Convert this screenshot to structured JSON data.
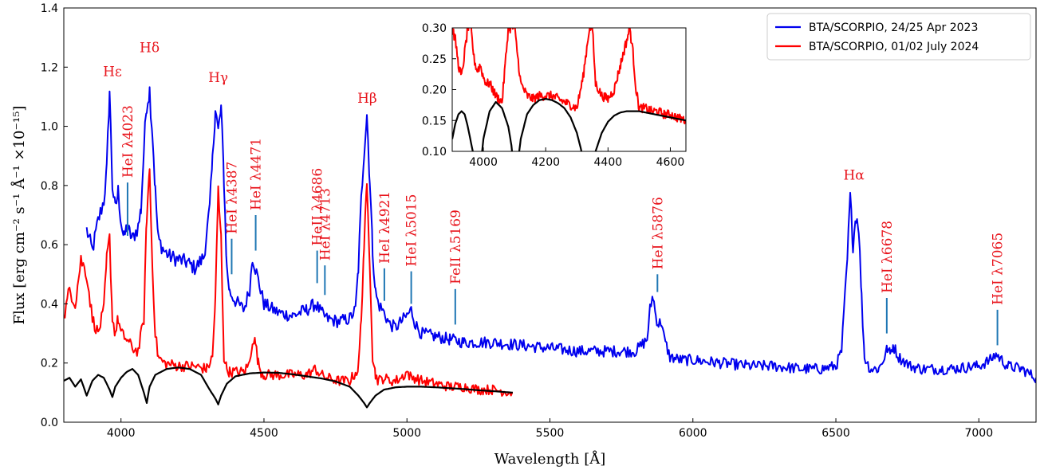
{
  "chart_data": [
    {
      "type": "line",
      "xlabel": "Wavelength [Å]",
      "ylabel": "Flux [erg cm⁻² s⁻¹ Å⁻¹ ×10⁻¹⁵]",
      "xlim": [
        3800,
        7200
      ],
      "ylim": [
        0,
        1.4
      ],
      "xticks": [
        "4000",
        "4500",
        "5000",
        "5500",
        "6000",
        "6500",
        "7000"
      ],
      "yticks": [
        "0.0",
        "0.2",
        "0.4",
        "0.6",
        "0.8",
        "1.0",
        "1.2",
        "1.4"
      ],
      "legend_position": "top-right",
      "series": [
        {
          "name": "BTA/SCORPIO, 24/25 Apr 2023",
          "color": "#0000ee",
          "x": [
            3880,
            3900,
            3920,
            3940,
            3950,
            3960,
            3970,
            3980,
            3990,
            4000,
            4010,
            4020,
            4030,
            4040,
            4060,
            4070,
            4080,
            4090,
            4100,
            4110,
            4120,
            4130,
            4150,
            4170,
            4200,
            4230,
            4260,
            4290,
            4310,
            4320,
            4330,
            4340,
            4350,
            4360,
            4370,
            4380,
            4400,
            4430,
            4450,
            4460,
            4470,
            4480,
            4490,
            4500,
            4550,
            4600,
            4650,
            4680,
            4700,
            4720,
            4760,
            4800,
            4820,
            4830,
            4840,
            4850,
            4860,
            4870,
            4880,
            4890,
            4900,
            4920,
            4940,
            4960,
            4980,
            5000,
            5015,
            5030,
            5050,
            5100,
            5150,
            5200,
            5300,
            5400,
            5500,
            5600,
            5700,
            5800,
            5840,
            5850,
            5860,
            5870,
            5880,
            5890,
            5900,
            5920,
            5960,
            6000,
            6100,
            6200,
            6280,
            6380,
            6450,
            6500,
            6520,
            6540,
            6550,
            6560,
            6570,
            6580,
            6590,
            6600,
            6620,
            6650,
            6670,
            6680,
            6690,
            6700,
            6720,
            6760,
            6800,
            6900,
            7000,
            7040,
            7060,
            7080,
            7100,
            7150,
            7200
          ],
          "y": [
            0.65,
            0.58,
            0.68,
            0.75,
            0.85,
            1.12,
            0.8,
            0.72,
            0.78,
            0.68,
            0.62,
            0.66,
            0.64,
            0.62,
            0.66,
            0.72,
            0.92,
            1.08,
            1.12,
            0.98,
            0.78,
            0.62,
            0.58,
            0.56,
            0.55,
            0.54,
            0.52,
            0.56,
            0.72,
            0.88,
            1.07,
            0.98,
            1.06,
            0.82,
            0.52,
            0.44,
            0.41,
            0.38,
            0.45,
            0.56,
            0.52,
            0.48,
            0.44,
            0.4,
            0.37,
            0.36,
            0.38,
            0.4,
            0.37,
            0.35,
            0.34,
            0.35,
            0.38,
            0.52,
            0.75,
            0.92,
            1.04,
            0.82,
            0.58,
            0.44,
            0.4,
            0.37,
            0.33,
            0.32,
            0.34,
            0.36,
            0.38,
            0.33,
            0.3,
            0.29,
            0.28,
            0.27,
            0.27,
            0.26,
            0.25,
            0.24,
            0.24,
            0.24,
            0.28,
            0.38,
            0.43,
            0.36,
            0.33,
            0.34,
            0.28,
            0.22,
            0.21,
            0.21,
            0.2,
            0.19,
            0.19,
            0.18,
            0.18,
            0.19,
            0.24,
            0.55,
            0.76,
            0.6,
            0.7,
            0.66,
            0.42,
            0.22,
            0.18,
            0.18,
            0.22,
            0.25,
            0.23,
            0.26,
            0.22,
            0.19,
            0.18,
            0.18,
            0.19,
            0.21,
            0.23,
            0.21,
            0.19,
            0.18,
            0.15
          ]
        },
        {
          "name": "BTA/SCORPIO, 01/02 July 2024",
          "color": "#ff0000",
          "x": [
            3800,
            3820,
            3840,
            3860,
            3880,
            3900,
            3920,
            3940,
            3950,
            3960,
            3970,
            3980,
            3990,
            4000,
            4020,
            4040,
            4060,
            4080,
            4090,
            4100,
            4110,
            4120,
            4130,
            4150,
            4200,
            4250,
            4300,
            4320,
            4330,
            4340,
            4350,
            4360,
            4370,
            4380,
            4400,
            4430,
            4450,
            4460,
            4470,
            4480,
            4490,
            4500,
            4550,
            4600,
            4650,
            4680,
            4700,
            4720,
            4760,
            4800,
            4830,
            4840,
            4850,
            4860,
            4870,
            4880,
            4890,
            4900,
            4920,
            4940,
            4960,
            4980,
            5000,
            5015,
            5030,
            5050,
            5100,
            5150,
            5200,
            5250,
            5300,
            5370
          ],
          "y": [
            0.35,
            0.45,
            0.4,
            0.55,
            0.5,
            0.35,
            0.3,
            0.38,
            0.55,
            0.62,
            0.35,
            0.3,
            0.35,
            0.3,
            0.28,
            0.25,
            0.24,
            0.35,
            0.7,
            0.85,
            0.52,
            0.3,
            0.22,
            0.2,
            0.19,
            0.19,
            0.18,
            0.22,
            0.42,
            0.78,
            0.62,
            0.22,
            0.18,
            0.17,
            0.17,
            0.17,
            0.2,
            0.28,
            0.27,
            0.2,
            0.17,
            0.16,
            0.16,
            0.16,
            0.16,
            0.18,
            0.16,
            0.15,
            0.14,
            0.14,
            0.18,
            0.35,
            0.6,
            0.79,
            0.55,
            0.22,
            0.16,
            0.14,
            0.15,
            0.14,
            0.14,
            0.15,
            0.17,
            0.15,
            0.15,
            0.14,
            0.13,
            0.12,
            0.12,
            0.11,
            0.11,
            0.1
          ]
        },
        {
          "color": "#000000",
          "x": [
            3800,
            3820,
            3840,
            3860,
            3880,
            3900,
            3920,
            3940,
            3960,
            3970,
            3980,
            4000,
            4020,
            4040,
            4060,
            4080,
            4090,
            4100,
            4120,
            4160,
            4200,
            4240,
            4280,
            4310,
            4330,
            4340,
            4350,
            4370,
            4400,
            4450,
            4500,
            4550,
            4600,
            4650,
            4700,
            4750,
            4800,
            4830,
            4850,
            4860,
            4870,
            4890,
            4920,
            4960,
            5000,
            5050,
            5100,
            5150,
            5200,
            5250,
            5300,
            5370
          ],
          "y": [
            0.14,
            0.15,
            0.12,
            0.145,
            0.09,
            0.14,
            0.16,
            0.15,
            0.11,
            0.085,
            0.12,
            0.15,
            0.17,
            0.18,
            0.16,
            0.1,
            0.065,
            0.12,
            0.16,
            0.18,
            0.185,
            0.18,
            0.16,
            0.11,
            0.08,
            0.06,
            0.09,
            0.13,
            0.155,
            0.165,
            0.168,
            0.167,
            0.162,
            0.155,
            0.148,
            0.138,
            0.12,
            0.09,
            0.065,
            0.05,
            0.065,
            0.09,
            0.11,
            0.118,
            0.12,
            0.12,
            0.118,
            0.115,
            0.112,
            0.108,
            0.105,
            0.1
          ]
        }
      ],
      "annotations": [
        {
          "label": "Hε",
          "x": 3970,
          "y": 1.17
        },
        {
          "label": "Hδ",
          "x": 4100,
          "y": 1.25
        },
        {
          "label": "Hγ",
          "x": 4340,
          "y": 1.15
        },
        {
          "label": "Hβ",
          "x": 4861,
          "y": 1.08
        },
        {
          "label": "Hα",
          "x": 6563,
          "y": 0.82
        }
      ],
      "line_ids": [
        {
          "label": "HeI λ4023",
          "x": 4023,
          "y0": 0.63,
          "y1": 0.81
        },
        {
          "label": "HeI λ4387",
          "x": 4387,
          "y0": 0.5,
          "y1": 0.62
        },
        {
          "label": "HeI λ4471",
          "x": 4471,
          "y0": 0.58,
          "y1": 0.7
        },
        {
          "label": "HeII λ4686",
          "x": 4686,
          "y0": 0.47,
          "y1": 0.58
        },
        {
          "label": "HeI λ4713",
          "x": 4713,
          "y0": 0.43,
          "y1": 0.53
        },
        {
          "label": "HeI λ4921",
          "x": 4921,
          "y0": 0.41,
          "y1": 0.52
        },
        {
          "label": "HeI λ5015",
          "x": 5015,
          "y0": 0.4,
          "y1": 0.51
        },
        {
          "label": "FeII λ5169",
          "x": 5169,
          "y0": 0.33,
          "y1": 0.45
        },
        {
          "label": "HeI λ5876",
          "x": 5876,
          "y0": 0.44,
          "y1": 0.5
        },
        {
          "label": "HeI λ6678",
          "x": 6678,
          "y0": 0.3,
          "y1": 0.42
        },
        {
          "label": "HeI λ7065",
          "x": 7065,
          "y0": 0.26,
          "y1": 0.38
        }
      ]
    },
    {
      "type": "line",
      "title": "",
      "xlim": [
        3900,
        4650
      ],
      "ylim": [
        0.1,
        0.3
      ],
      "xticks": [
        "4000",
        "4200",
        "4400",
        "4600"
      ],
      "yticks": [
        "0.10",
        "0.15",
        "0.20",
        "0.25",
        "0.30"
      ],
      "series": [
        {
          "color": "#ff0000",
          "x": [
            3900,
            3910,
            3920,
            3930,
            3940,
            3950,
            3960,
            3970,
            3980,
            3990,
            4000,
            4010,
            4020,
            4030,
            4040,
            4060,
            4080,
            4100,
            4120,
            4140,
            4160,
            4180,
            4200,
            4220,
            4240,
            4260,
            4280,
            4300,
            4320,
            4340,
            4350,
            4360,
            4380,
            4400,
            4420,
            4440,
            4460,
            4470,
            4480,
            4490,
            4500,
            4520,
            4540,
            4560,
            4580,
            4600,
            4620,
            4650
          ],
          "y": [
            0.3,
            0.28,
            0.24,
            0.22,
            0.26,
            0.3,
            0.3,
            0.25,
            0.23,
            0.24,
            0.22,
            0.21,
            0.21,
            0.2,
            0.19,
            0.18,
            0.3,
            0.3,
            0.21,
            0.19,
            0.185,
            0.19,
            0.19,
            0.19,
            0.185,
            0.18,
            0.175,
            0.17,
            0.22,
            0.3,
            0.3,
            0.21,
            0.19,
            0.185,
            0.2,
            0.24,
            0.28,
            0.3,
            0.26,
            0.2,
            0.17,
            0.17,
            0.165,
            0.165,
            0.16,
            0.16,
            0.155,
            0.15
          ]
        },
        {
          "color": "#000000",
          "x": [
            3900,
            3910,
            3920,
            3930,
            3940,
            3950,
            3960,
            3970,
            3980,
            3990,
            4000,
            4020,
            4040,
            4060,
            4080,
            4090,
            4100,
            4110,
            4120,
            4140,
            4160,
            4180,
            4200,
            4220,
            4240,
            4260,
            4280,
            4300,
            4310,
            4320,
            4330,
            4340,
            4350,
            4360,
            4380,
            4400,
            4420,
            4440,
            4460,
            4480,
            4500,
            4520,
            4540,
            4560,
            4580,
            4600,
            4620,
            4650
          ],
          "y": [
            0.12,
            0.145,
            0.16,
            0.165,
            0.16,
            0.14,
            0.115,
            0.09,
            0.06,
            0.07,
            0.12,
            0.165,
            0.18,
            0.17,
            0.14,
            0.11,
            0.06,
            0.08,
            0.12,
            0.16,
            0.175,
            0.183,
            0.185,
            0.183,
            0.178,
            0.17,
            0.155,
            0.13,
            0.11,
            0.09,
            0.06,
            0.05,
            0.08,
            0.1,
            0.13,
            0.148,
            0.158,
            0.163,
            0.165,
            0.165,
            0.165,
            0.163,
            0.161,
            0.159,
            0.157,
            0.155,
            0.153,
            0.15
          ]
        }
      ]
    }
  ]
}
